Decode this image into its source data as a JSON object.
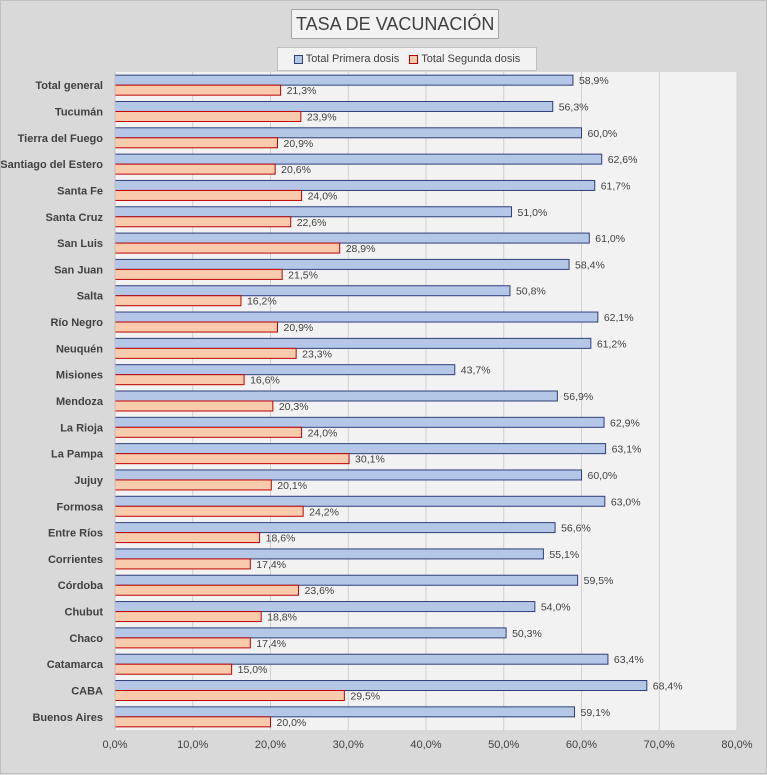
{
  "chart_data": {
    "type": "bar",
    "orientation": "horizontal",
    "title": "TASA DE VACUNACIÓN",
    "legend_position": "top",
    "grid": true,
    "xlim": [
      0,
      80
    ],
    "x_ticks": [
      0,
      10,
      20,
      30,
      40,
      50,
      60,
      70,
      80
    ],
    "x_tick_labels": [
      "0,0%",
      "10,0%",
      "20,0%",
      "30,0%",
      "40,0%",
      "50,0%",
      "60,0%",
      "70,0%",
      "80,0%"
    ],
    "categories": [
      "Total general",
      "Tucumán",
      "Tierra del Fuego",
      "Santiago del Estero",
      "Santa Fe",
      "Santa Cruz",
      "San Luis",
      "San Juan",
      "Salta",
      "Río Negro",
      "Neuquén",
      "Misiones",
      "Mendoza",
      "La Rioja",
      "La Pampa",
      "Jujuy",
      "Formosa",
      "Entre Ríos",
      "Corrientes",
      "Córdoba",
      "Chubut",
      "Chaco",
      "Catamarca",
      "CABA",
      "Buenos Aires"
    ],
    "series": [
      {
        "name": "Total Primera dosis",
        "color": "#b4c7e7",
        "stroke": "#2f3f7a",
        "values": [
          58.9,
          56.3,
          60.0,
          62.6,
          61.7,
          51.0,
          61.0,
          58.4,
          50.8,
          62.1,
          61.2,
          43.7,
          56.9,
          62.9,
          63.1,
          60.0,
          63.0,
          56.6,
          55.1,
          59.5,
          54.0,
          50.3,
          63.4,
          68.4,
          59.1
        ],
        "labels": [
          "58,9%",
          "56,3%",
          "60,0%",
          "62,6%",
          "61,7%",
          "51,0%",
          "61,0%",
          "58,4%",
          "50,8%",
          "62,1%",
          "61,2%",
          "43,7%",
          "56,9%",
          "62,9%",
          "63,1%",
          "60,0%",
          "63,0%",
          "56,6%",
          "55,1%",
          "59,5%",
          "54,0%",
          "50,3%",
          "63,4%",
          "68,4%",
          "59,1%"
        ]
      },
      {
        "name": "Total Segunda dosis",
        "color": "#f8cbad",
        "stroke": "#c00000",
        "values": [
          21.3,
          23.9,
          20.9,
          20.6,
          24.0,
          22.6,
          28.9,
          21.5,
          16.2,
          20.9,
          23.3,
          16.6,
          20.3,
          24.0,
          30.1,
          20.1,
          24.2,
          18.6,
          17.4,
          23.6,
          18.8,
          17.4,
          15.0,
          29.5,
          20.0
        ],
        "labels": [
          "21,3%",
          "23,9%",
          "20,9%",
          "20,6%",
          "24,0%",
          "22,6%",
          "28,9%",
          "21,5%",
          "16,2%",
          "20,9%",
          "23,3%",
          "16,6%",
          "20,3%",
          "24,0%",
          "30,1%",
          "20,1%",
          "24,2%",
          "18,6%",
          "17,4%",
          "23,6%",
          "18,8%",
          "17,4%",
          "15,0%",
          "29,5%",
          "20,0%"
        ]
      }
    ]
  },
  "colors": {
    "background": "#d9d9d9",
    "plot_area": "#f2f2f2",
    "gridline": "#d0d0d0",
    "text": "#404040"
  }
}
